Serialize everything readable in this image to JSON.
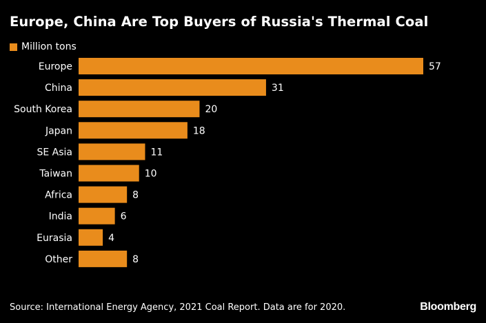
{
  "colors": {
    "bar": "#E98C1C",
    "text": "#FFFFFF",
    "background": "#000000"
  },
  "chart_data": {
    "type": "bar",
    "orientation": "horizontal",
    "title": "Europe, China Are Top Buyers of Russia's Thermal Coal",
    "categories": [
      "Europe",
      "China",
      "South Korea",
      "Japan",
      "SE Asia",
      "Taiwan",
      "Africa",
      "India",
      "Eurasia",
      "Other"
    ],
    "series": [
      {
        "name": "Million tons",
        "values": [
          57,
          31,
          20,
          18,
          11,
          10,
          8,
          6,
          4,
          8
        ]
      }
    ],
    "data_labels": [
      "57",
      "31",
      "20",
      "18",
      "11",
      "10",
      "8",
      "6",
      "4",
      "8"
    ],
    "xlim": [
      0,
      57
    ],
    "grid": false,
    "legend": "top-left"
  },
  "footer": {
    "source": "Source: International Energy Agency, 2021 Coal Report. Data are for 2020.",
    "brand": "Bloomberg"
  }
}
